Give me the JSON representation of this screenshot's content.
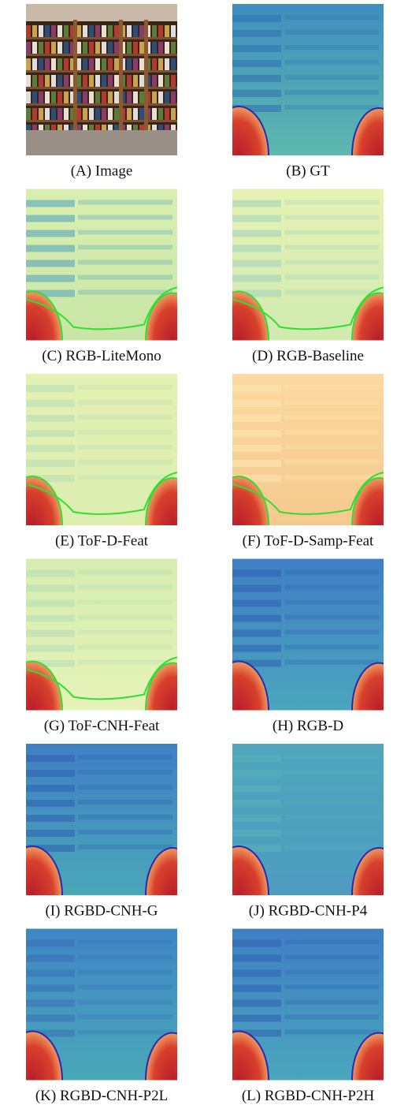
{
  "panels": [
    {
      "caption": "(A) Image"
    },
    {
      "caption": "(B) GT"
    },
    {
      "caption": "(C) RGB-LiteMono"
    },
    {
      "caption": "(D) RGB-Baseline"
    },
    {
      "caption": "(E) ToF-D-Feat"
    },
    {
      "caption": "(F) ToF-D-Samp-Feat"
    },
    {
      "caption": "(G) ToF-CNH-Feat"
    },
    {
      "caption": "(H) RGB-D"
    },
    {
      "caption": "(I) RGBD-CNH-G"
    },
    {
      "caption": "(J) RGBD-CNH-P4"
    },
    {
      "caption": "(K) RGBD-CNH-P2L"
    },
    {
      "caption": "(L) RGBD-CNH-P2H"
    }
  ]
}
